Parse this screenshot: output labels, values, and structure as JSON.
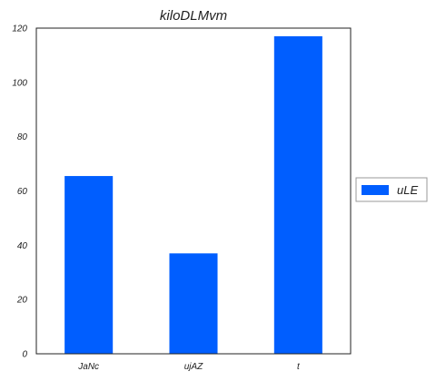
{
  "chart_data": {
    "type": "bar",
    "title": "kiloDLMvm",
    "xlabel": "",
    "ylabel": "",
    "categories": [
      "JaNc",
      "ujAZ",
      "t"
    ],
    "series": [
      {
        "name": "uLE",
        "values": [
          65.5,
          37,
          117
        ],
        "color": "#005eff"
      }
    ],
    "ylim": [
      0,
      120
    ],
    "yticks": [
      0,
      20,
      40,
      60,
      80,
      100,
      120
    ],
    "grid": false,
    "legend_position": "right"
  }
}
